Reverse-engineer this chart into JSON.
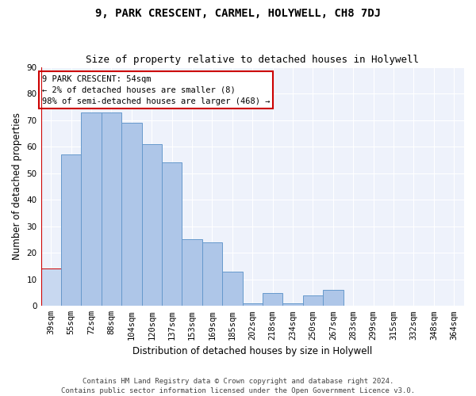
{
  "title": "9, PARK CRESCENT, CARMEL, HOLYWELL, CH8 7DJ",
  "subtitle": "Size of property relative to detached houses in Holywell",
  "xlabel": "Distribution of detached houses by size in Holywell",
  "ylabel": "Number of detached properties",
  "categories": [
    "39sqm",
    "55sqm",
    "72sqm",
    "88sqm",
    "104sqm",
    "120sqm",
    "137sqm",
    "153sqm",
    "169sqm",
    "185sqm",
    "202sqm",
    "218sqm",
    "234sqm",
    "250sqm",
    "267sqm",
    "283sqm",
    "299sqm",
    "315sqm",
    "332sqm",
    "348sqm",
    "364sqm"
  ],
  "values": [
    14,
    57,
    73,
    73,
    69,
    61,
    54,
    25,
    24,
    13,
    1,
    5,
    1,
    4,
    6,
    0,
    0,
    0,
    0,
    0,
    0
  ],
  "highlight_index": 0,
  "bar_color": "#aec6e8",
  "bar_edge_color": "#6699cc",
  "highlight_bar_color": "#c8d8f0",
  "highlight_bar_edge_color": "#cc0000",
  "annotation_text": "9 PARK CRESCENT: 54sqm\n← 2% of detached houses are smaller (8)\n98% of semi-detached houses are larger (468) →",
  "annotation_box_edge_color": "#cc0000",
  "ylim": [
    0,
    90
  ],
  "yticks": [
    0,
    10,
    20,
    30,
    40,
    50,
    60,
    70,
    80,
    90
  ],
  "bg_color": "#eef2fb",
  "footer_text": "Contains HM Land Registry data © Crown copyright and database right 2024.\nContains public sector information licensed under the Open Government Licence v3.0.",
  "title_fontsize": 10,
  "subtitle_fontsize": 9,
  "axis_label_fontsize": 8.5,
  "tick_fontsize": 7.5,
  "annotation_fontsize": 7.5,
  "footer_fontsize": 6.5
}
